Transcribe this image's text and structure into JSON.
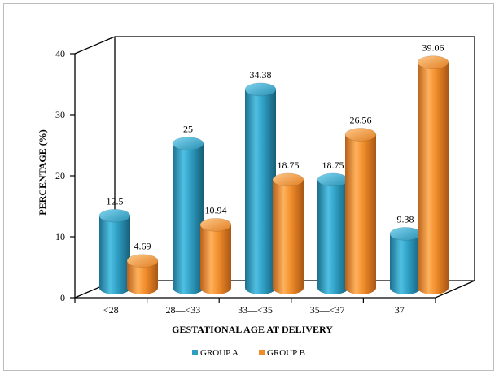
{
  "chart_data": {
    "type": "bar",
    "title": "",
    "xlabel": "GESTATIONAL AGE AT DELIVERY",
    "ylabel": "PERCENTAGE (%)",
    "ylim": [
      0,
      40
    ],
    "yticks": [
      "0",
      "10",
      "20",
      "30",
      "40"
    ],
    "categories": [
      "<28",
      "28—<33",
      "33—<35",
      "35—<37",
      "37"
    ],
    "series": [
      {
        "name": "GROUP A",
        "values": [
          12.5,
          25,
          34.38,
          18.75,
          9.38
        ],
        "labels": [
          "12.5",
          "25",
          "34.38",
          "18.75",
          "9.38"
        ],
        "color": "#2E9DC2"
      },
      {
        "name": "GROUP B",
        "values": [
          4.69,
          10.94,
          18.75,
          26.56,
          39.06
        ],
        "labels": [
          "4.69",
          "10.94",
          "18.75",
          "26.56",
          "39.06"
        ],
        "color": "#F08C2A"
      }
    ],
    "legend_position": "bottom",
    "style": "3d-cylinder",
    "grid": false
  }
}
